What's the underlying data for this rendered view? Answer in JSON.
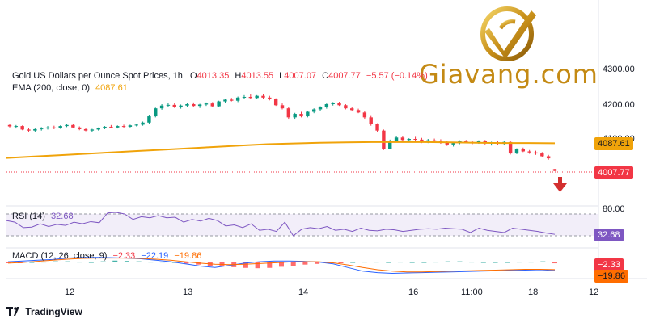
{
  "header": {
    "title": "Gold US Dollars per Ounce Spot Prices, 1h",
    "open_label": "O",
    "open": "4013.35",
    "high_label": "H",
    "high": "4013.55",
    "low_label": "L",
    "low": "4007.07",
    "close_label": "C",
    "close": "4007.77",
    "change": "−5.57 (−0.14%)",
    "ema_label": "EMA (200, close, 0)",
    "ema_value": "4087.61"
  },
  "rsi": {
    "label": "RSI (14)",
    "value": "32.68"
  },
  "macd": {
    "label": "MACD (12, 26, close, 9)",
    "hist": "−2.33",
    "macd_value": "−22.19",
    "signal": "−19.86"
  },
  "brand": {
    "text": "Giavang.com"
  },
  "footer": {
    "tradingview": "TradingView"
  },
  "badges": {
    "ema": "4087.61",
    "price": "4007.77",
    "rsi": "32.68",
    "macd_hist": "−2.33",
    "macd_signal": "−19.86"
  },
  "colors": {
    "up": "#089981",
    "down": "#f23645",
    "ema": "#f0a30a",
    "rsi": "#7e57c2",
    "macd": "#2962ff",
    "signal": "#ff6d00",
    "brand": "#c48a14"
  },
  "icons": {
    "logo": "gold-v-logo-icon",
    "arrow": "down-arrow-icon",
    "tv": "tradingview-logo-icon"
  },
  "chart_data": {
    "type": "candlestick",
    "title": "Gold US Dollars per Ounce Spot Prices, 1h",
    "price_axis": {
      "ticks": [
        "4300.00",
        "4200.00",
        "4100.00"
      ],
      "tick_values": [
        4300,
        4200,
        4100
      ],
      "ylim": [
        3960,
        4300
      ]
    },
    "x_ticks": [
      "12",
      "13",
      "14",
      "16",
      "11:00",
      "18",
      "12"
    ],
    "candles": [
      [
        4140,
        4142,
        4133,
        4136
      ],
      [
        4136,
        4140,
        4130,
        4137
      ],
      [
        4137,
        4139,
        4125,
        4127
      ],
      [
        4127,
        4132,
        4121,
        4124
      ],
      [
        4124,
        4130,
        4121,
        4128
      ],
      [
        4128,
        4134,
        4124,
        4130
      ],
      [
        4130,
        4137,
        4127,
        4133
      ],
      [
        4133,
        4138,
        4128,
        4131
      ],
      [
        4131,
        4139,
        4129,
        4137
      ],
      [
        4137,
        4144,
        4134,
        4140
      ],
      [
        4140,
        4143,
        4131,
        4133
      ],
      [
        4133,
        4136,
        4125,
        4128
      ],
      [
        4128,
        4132,
        4122,
        4124
      ],
      [
        4124,
        4129,
        4119,
        4127
      ],
      [
        4127,
        4133,
        4124,
        4131
      ],
      [
        4131,
        4137,
        4128,
        4135
      ],
      [
        4135,
        4140,
        4131,
        4133
      ],
      [
        4133,
        4139,
        4130,
        4137
      ],
      [
        4137,
        4141,
        4132,
        4135
      ],
      [
        4135,
        4141,
        4133,
        4139
      ],
      [
        4139,
        4144,
        4136,
        4141
      ],
      [
        4141,
        4150,
        4138,
        4147
      ],
      [
        4147,
        4168,
        4144,
        4165
      ],
      [
        4165,
        4190,
        4162,
        4188
      ],
      [
        4188,
        4200,
        4184,
        4196
      ],
      [
        4196,
        4204,
        4191,
        4198
      ],
      [
        4198,
        4203,
        4189,
        4191
      ],
      [
        4191,
        4199,
        4187,
        4196
      ],
      [
        4196,
        4204,
        4192,
        4200
      ],
      [
        4200,
        4205,
        4193,
        4195
      ],
      [
        4195,
        4201,
        4189,
        4199
      ],
      [
        4199,
        4205,
        4195,
        4202
      ],
      [
        4202,
        4206,
        4192,
        4194
      ],
      [
        4194,
        4210,
        4191,
        4208
      ],
      [
        4208,
        4215,
        4204,
        4213
      ],
      [
        4213,
        4218,
        4208,
        4210
      ],
      [
        4210,
        4222,
        4206,
        4219
      ],
      [
        4219,
        4226,
        4214,
        4221
      ],
      [
        4221,
        4228,
        4215,
        4218
      ],
      [
        4218,
        4226,
        4214,
        4224
      ],
      [
        4224,
        4229,
        4216,
        4219
      ],
      [
        4219,
        4224,
        4211,
        4214
      ],
      [
        4214,
        4217,
        4195,
        4197
      ],
      [
        4197,
        4202,
        4185,
        4188
      ],
      [
        4188,
        4192,
        4158,
        4162
      ],
      [
        4162,
        4175,
        4158,
        4172
      ],
      [
        4172,
        4178,
        4162,
        4165
      ],
      [
        4165,
        4180,
        4162,
        4178
      ],
      [
        4178,
        4188,
        4174,
        4185
      ],
      [
        4185,
        4194,
        4180,
        4191
      ],
      [
        4191,
        4202,
        4187,
        4200
      ],
      [
        4200,
        4206,
        4196,
        4203
      ],
      [
        4203,
        4207,
        4195,
        4197
      ],
      [
        4197,
        4200,
        4185,
        4188
      ],
      [
        4188,
        4192,
        4179,
        4183
      ],
      [
        4183,
        4187,
        4174,
        4176
      ],
      [
        4176,
        4180,
        4158,
        4162
      ],
      [
        4162,
        4166,
        4138,
        4142
      ],
      [
        4142,
        4145,
        4120,
        4124
      ],
      [
        4124,
        4127,
        4068,
        4072
      ],
      [
        4072,
        4098,
        4070,
        4094
      ],
      [
        4094,
        4107,
        4090,
        4104
      ],
      [
        4104,
        4108,
        4094,
        4097
      ],
      [
        4097,
        4102,
        4090,
        4100
      ],
      [
        4100,
        4106,
        4094,
        4098
      ],
      [
        4098,
        4103,
        4088,
        4092
      ],
      [
        4092,
        4100,
        4088,
        4096
      ],
      [
        4096,
        4101,
        4091,
        4094
      ],
      [
        4094,
        4099,
        4086,
        4090
      ],
      [
        4090,
        4094,
        4080,
        4084
      ],
      [
        4084,
        4090,
        4078,
        4088
      ],
      [
        4088,
        4096,
        4085,
        4093
      ],
      [
        4093,
        4097,
        4088,
        4091
      ],
      [
        4091,
        4095,
        4085,
        4088
      ],
      [
        4088,
        4096,
        4086,
        4094
      ],
      [
        4094,
        4097,
        4084,
        4087
      ],
      [
        4087,
        4092,
        4081,
        4090
      ],
      [
        4090,
        4094,
        4083,
        4086
      ],
      [
        4086,
        4093,
        4082,
        4091
      ],
      [
        4091,
        4093,
        4055,
        4058
      ],
      [
        4058,
        4073,
        4056,
        4070
      ],
      [
        4070,
        4075,
        4062,
        4064
      ],
      [
        4064,
        4068,
        4057,
        4061
      ],
      [
        4061,
        4066,
        4054,
        4058
      ],
      [
        4058,
        4062,
        4047,
        4050
      ],
      [
        4050,
        4054,
        4040,
        4044
      ],
      [
        4013,
        4014,
        4007,
        4008
      ]
    ],
    "ema200": [
      4045,
      4049,
      4053,
      4057,
      4061,
      4065,
      4069,
      4073,
      4077,
      4081,
      4085,
      4087,
      4089,
      4090,
      4091,
      4091,
      4091,
      4090,
      4089,
      4088,
      4088,
      4087.61
    ],
    "rsi": {
      "levels": [
        70,
        30
      ],
      "values": [
        58,
        55,
        45,
        46,
        52,
        47,
        51,
        49,
        55,
        52,
        56,
        54,
        72,
        73,
        70,
        60,
        65,
        63,
        67,
        63,
        64,
        55,
        60,
        57,
        62,
        58,
        48,
        50,
        45,
        52,
        40,
        42,
        38,
        55,
        30,
        42,
        45,
        43,
        47,
        40,
        42,
        38,
        44,
        40,
        39,
        42,
        41,
        38,
        40,
        42,
        43,
        42,
        44,
        43,
        42,
        36,
        44,
        40,
        38,
        36,
        44,
        42,
        40,
        38,
        35,
        32.68
      ]
    },
    "macd": {
      "hist": [
        -2,
        -1,
        1,
        2,
        3,
        3,
        2,
        1,
        3,
        5,
        4,
        3,
        2,
        2,
        1,
        -3,
        -6,
        -9,
        -11,
        -13,
        -15,
        -16,
        -15,
        -12,
        -9,
        -6,
        -4,
        -2,
        -1,
        1,
        2,
        2,
        1,
        2,
        1,
        1,
        2,
        3,
        3,
        2,
        1,
        1,
        1,
        2,
        2,
        3,
        -2.33
      ],
      "macd_line": [
        2,
        4,
        6,
        8,
        12,
        14,
        14,
        13,
        12,
        10,
        6,
        2,
        -4,
        -10,
        -14,
        -8,
        -2,
        2,
        4,
        4,
        3,
        1,
        -4,
        -14,
        -24,
        -28,
        -30,
        -29,
        -28,
        -27,
        -26,
        -25,
        -24,
        -23,
        -22,
        -21,
        -20,
        -22.19
      ],
      "signal_line": [
        -2,
        0,
        3,
        6,
        9,
        11,
        12,
        12,
        12,
        11,
        9,
        6,
        2,
        -2,
        -5,
        -6,
        -5,
        -3,
        -1,
        1,
        2,
        2,
        -1,
        -7,
        -14,
        -20,
        -24,
        -26,
        -26,
        -25,
        -24,
        -23,
        -22,
        -21,
        -20,
        -19,
        -19,
        -19.86
      ]
    }
  }
}
